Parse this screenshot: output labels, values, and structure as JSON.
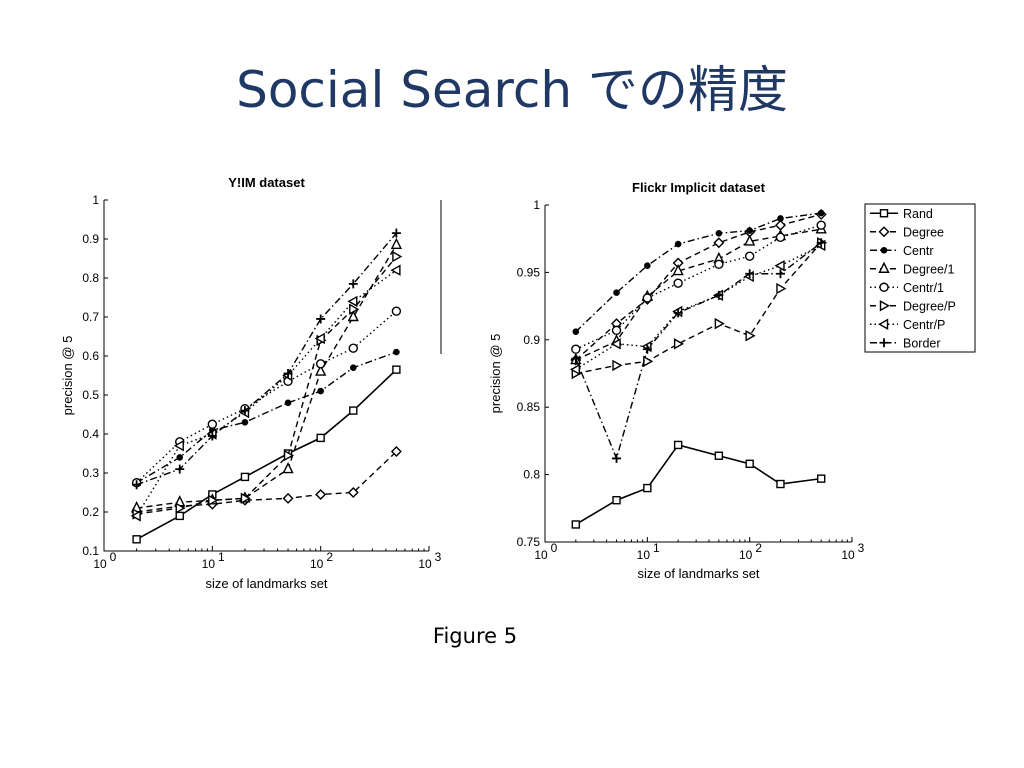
{
  "slide": {
    "title": "Social Search での精度",
    "caption": "Figure 5",
    "title_color": "#1f3864"
  },
  "chart_data": [
    {
      "type": "line",
      "title": "Y!IM dataset",
      "xlabel": "size of landmarks set",
      "ylabel": "precision @ 5",
      "xscale": "log",
      "xlim": [
        1,
        1000
      ],
      "ylim": [
        0.1,
        1
      ],
      "yticks": [
        0.1,
        0.2,
        0.3,
        0.4,
        0.5,
        0.6,
        0.7,
        0.8,
        0.9,
        1
      ],
      "ytick_labels": [
        "0.1",
        "0.2",
        "0.3",
        "0.4",
        "0.5",
        "0.6",
        "0.7",
        "0.8",
        "0.9",
        "1"
      ],
      "xticks": [
        1,
        10,
        100,
        1000
      ],
      "xtick_labels": [
        "10",
        "10",
        "10",
        "10"
      ],
      "xtick_exponents": [
        "0",
        "1",
        "2",
        "3"
      ],
      "x": [
        2,
        5,
        10,
        20,
        50,
        100,
        200,
        500
      ],
      "series": [
        {
          "name": "Rand",
          "marker": "square",
          "dash": "solid",
          "values": [
            0.13,
            0.19,
            0.245,
            0.29,
            0.35,
            0.39,
            0.46,
            0.565
          ]
        },
        {
          "name": "Degree",
          "marker": "diamond",
          "dash": "dashed",
          "values": [
            0.2,
            0.215,
            0.22,
            0.23,
            0.235,
            0.245,
            0.25,
            0.355
          ]
        },
        {
          "name": "Centr",
          "marker": "dot",
          "dash": "dashdot",
          "values": [
            0.275,
            0.34,
            0.41,
            0.43,
            0.48,
            0.51,
            0.57,
            0.61
          ]
        },
        {
          "name": "Degree/1",
          "marker": "triangle-up",
          "dash": "dashed",
          "values": [
            0.21,
            0.225,
            0.23,
            0.235,
            0.31,
            0.56,
            0.7,
            0.885
          ]
        },
        {
          "name": "Centr/1",
          "marker": "circle",
          "dash": "dotted",
          "values": [
            0.275,
            0.38,
            0.425,
            0.465,
            0.535,
            0.58,
            0.62,
            0.715
          ]
        },
        {
          "name": "Degree/P",
          "marker": "triangle-right",
          "dash": "dashed",
          "values": [
            0.195,
            0.21,
            0.23,
            0.235,
            0.345,
            0.64,
            0.72,
            0.855
          ]
        },
        {
          "name": "Centr/P",
          "marker": "triangle-left",
          "dash": "dotted",
          "values": [
            0.19,
            0.37,
            0.4,
            0.455,
            0.55,
            0.645,
            0.74,
            0.82
          ]
        },
        {
          "name": "Border",
          "marker": "plus",
          "dash": "dashdot",
          "values": [
            0.27,
            0.31,
            0.395,
            0.46,
            0.555,
            0.695,
            0.785,
            0.915
          ]
        }
      ]
    },
    {
      "type": "line",
      "title": "Flickr Implicit dataset",
      "xlabel": "size of landmarks set",
      "ylabel": "precision @ 5",
      "xscale": "log",
      "xlim": [
        1,
        1000
      ],
      "ylim": [
        0.75,
        1
      ],
      "yticks": [
        0.75,
        0.8,
        0.85,
        0.9,
        0.95,
        1
      ],
      "ytick_labels": [
        "0.75",
        "0.8",
        "0.85",
        "0.9",
        "0.95",
        "1"
      ],
      "xticks": [
        1,
        10,
        100,
        1000
      ],
      "xtick_labels": [
        "10",
        "10",
        "10",
        "10"
      ],
      "xtick_exponents": [
        "0",
        "1",
        "2",
        "3"
      ],
      "legend": "top-right",
      "x": [
        2,
        5,
        10,
        20,
        50,
        100,
        200,
        500
      ],
      "series": [
        {
          "name": "Rand",
          "marker": "square",
          "dash": "solid",
          "values": [
            0.763,
            0.781,
            0.79,
            0.822,
            0.814,
            0.808,
            0.793,
            0.797
          ]
        },
        {
          "name": "Degree",
          "marker": "diamond",
          "dash": "dashed",
          "values": [
            0.885,
            0.912,
            0.93,
            0.957,
            0.972,
            0.98,
            0.985,
            0.993
          ]
        },
        {
          "name": "Centr",
          "marker": "dot",
          "dash": "dashdot",
          "values": [
            0.906,
            0.935,
            0.955,
            0.971,
            0.979,
            0.981,
            0.99,
            0.994
          ]
        },
        {
          "name": "Degree/1",
          "marker": "triangle-up",
          "dash": "dashed",
          "values": [
            0.885,
            0.899,
            0.932,
            0.951,
            0.96,
            0.973,
            0.977,
            0.982
          ]
        },
        {
          "name": "Centr/1",
          "marker": "circle",
          "dash": "dotted",
          "values": [
            0.893,
            0.907,
            0.931,
            0.942,
            0.956,
            0.962,
            0.976,
            0.985
          ]
        },
        {
          "name": "Degree/P",
          "marker": "triangle-right",
          "dash": "dashed",
          "values": [
            0.875,
            0.881,
            0.884,
            0.897,
            0.912,
            0.903,
            0.938,
            0.972
          ]
        },
        {
          "name": "Centr/P",
          "marker": "triangle-left",
          "dash": "dotted",
          "values": [
            0.878,
            0.897,
            0.895,
            0.921,
            0.933,
            0.947,
            0.955,
            0.97
          ]
        },
        {
          "name": "Border",
          "marker": "plus",
          "dash": "dashdot",
          "values": [
            0.886,
            0.812,
            0.893,
            0.92,
            0.933,
            0.949,
            0.949,
            0.972
          ]
        }
      ]
    }
  ]
}
